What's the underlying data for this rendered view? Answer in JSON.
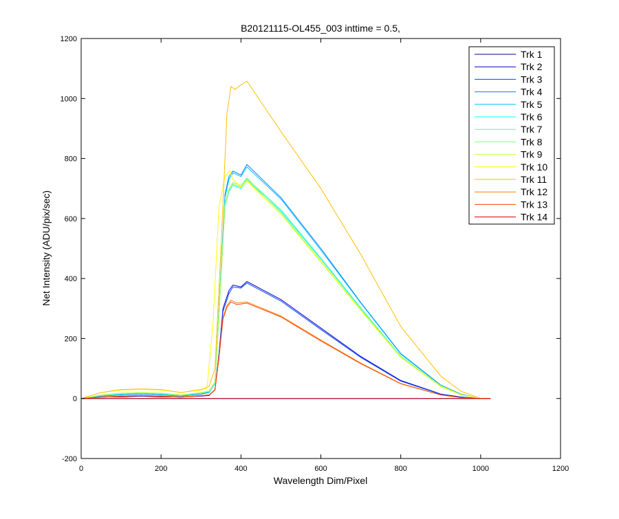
{
  "chart_data": {
    "type": "line",
    "title": "B20121115-OL455_003 inttime = 0.5,",
    "xlabel": "Wavelength Dim/Pixel",
    "ylabel": "Net Intensity (ADU/pix/sec)",
    "xlim": [
      0,
      1200
    ],
    "ylim": [
      -200,
      1200
    ],
    "xticks": [
      0,
      200,
      400,
      600,
      800,
      1000,
      1200
    ],
    "yticks": [
      -200,
      0,
      200,
      400,
      600,
      800,
      1000,
      1200
    ],
    "xtick_labels": [
      "0",
      "200",
      "400",
      "600",
      "800",
      "1000",
      "1200"
    ],
    "ytick_labels": [
      "-200",
      "0",
      "200",
      "400",
      "600",
      "800",
      "1000",
      "1200"
    ],
    "grid": false,
    "legend_position": "top-right",
    "series": [
      {
        "name": "Trk 1",
        "color": "#00008f",
        "x": [
          0,
          300,
          330,
          355,
          380,
          415,
          500,
          600,
          700,
          800,
          900,
          950,
          1000,
          1025
        ],
        "y": [
          0,
          0,
          0,
          0,
          0,
          0,
          0,
          0,
          0,
          0,
          0,
          0,
          0,
          0
        ]
      },
      {
        "name": "Trk 2",
        "color": "#0000cf",
        "x": [
          0,
          50,
          100,
          150,
          200,
          250,
          300,
          320,
          335,
          345,
          355,
          370,
          380,
          400,
          415,
          500,
          600,
          700,
          800,
          900,
          950,
          1000,
          1025
        ],
        "y": [
          0,
          5,
          5,
          8,
          5,
          5,
          8,
          10,
          30,
          150,
          300,
          360,
          378,
          372,
          390,
          330,
          235,
          140,
          60,
          15,
          5,
          0,
          0
        ]
      },
      {
        "name": "Trk 3",
        "color": "#0040ff",
        "x": [
          0,
          50,
          100,
          150,
          200,
          250,
          300,
          320,
          335,
          345,
          355,
          370,
          380,
          400,
          415,
          500,
          600,
          700,
          800,
          900,
          950,
          1000,
          1025
        ],
        "y": [
          0,
          5,
          8,
          10,
          8,
          5,
          10,
          12,
          30,
          150,
          290,
          350,
          372,
          368,
          385,
          325,
          230,
          137,
          58,
          14,
          4,
          0,
          0
        ]
      },
      {
        "name": "Trk 4",
        "color": "#0080ff",
        "x": [
          0,
          50,
          100,
          150,
          200,
          250,
          300,
          320,
          335,
          345,
          360,
          370,
          380,
          400,
          415,
          500,
          600,
          700,
          800,
          900,
          950,
          1000,
          1025
        ],
        "y": [
          0,
          8,
          12,
          15,
          12,
          8,
          15,
          20,
          50,
          300,
          680,
          740,
          758,
          745,
          780,
          670,
          500,
          320,
          150,
          45,
          15,
          0,
          0
        ]
      },
      {
        "name": "Trk 5",
        "color": "#00bfff",
        "x": [
          0,
          50,
          100,
          150,
          200,
          250,
          300,
          320,
          335,
          345,
          360,
          370,
          380,
          400,
          415,
          500,
          600,
          700,
          800,
          900,
          950,
          1000,
          1025
        ],
        "y": [
          0,
          10,
          15,
          18,
          15,
          10,
          18,
          22,
          50,
          300,
          670,
          730,
          752,
          740,
          772,
          665,
          495,
          318,
          148,
          44,
          14,
          0,
          0
        ]
      },
      {
        "name": "Trk 6",
        "color": "#00ffff",
        "x": [
          0,
          50,
          100,
          150,
          200,
          250,
          300,
          320,
          335,
          345,
          360,
          370,
          380,
          400,
          415,
          500,
          600,
          700,
          800,
          900,
          950,
          1000,
          1025
        ],
        "y": [
          0,
          10,
          15,
          18,
          15,
          10,
          18,
          22,
          50,
          280,
          640,
          690,
          712,
          700,
          728,
          625,
          465,
          300,
          140,
          42,
          13,
          0,
          0
        ]
      },
      {
        "name": "Trk 7",
        "color": "#40ffbf",
        "x": [
          0,
          50,
          100,
          150,
          200,
          250,
          300,
          320,
          335,
          345,
          360,
          370,
          380,
          400,
          415,
          500,
          600,
          700,
          800,
          900,
          950,
          1000,
          1025
        ],
        "y": [
          0,
          10,
          15,
          18,
          15,
          10,
          18,
          22,
          50,
          280,
          645,
          695,
          715,
          705,
          732,
          630,
          468,
          302,
          141,
          42,
          13,
          0,
          0
        ]
      },
      {
        "name": "Trk 8",
        "color": "#80ff80",
        "x": [
          0,
          50,
          100,
          150,
          200,
          250,
          300,
          320,
          335,
          345,
          360,
          370,
          380,
          400,
          415,
          500,
          600,
          700,
          800,
          900,
          950,
          1000,
          1025
        ],
        "y": [
          0,
          12,
          18,
          20,
          18,
          12,
          20,
          25,
          55,
          290,
          650,
          700,
          720,
          710,
          735,
          620,
          458,
          296,
          138,
          41,
          12,
          0,
          0
        ]
      },
      {
        "name": "Trk 9",
        "color": "#bfff40",
        "x": [
          0,
          50,
          100,
          150,
          200,
          250,
          300,
          320,
          335,
          345,
          360,
          370,
          380,
          400,
          415,
          500,
          600,
          700,
          800,
          900,
          950,
          1000,
          1025
        ],
        "y": [
          0,
          12,
          18,
          20,
          18,
          12,
          20,
          25,
          55,
          285,
          645,
          695,
          715,
          706,
          728,
          615,
          455,
          294,
          137,
          40,
          12,
          0,
          0
        ]
      },
      {
        "name": "Trk 10",
        "color": "#ffff00",
        "x": [
          0,
          50,
          100,
          150,
          200,
          250,
          300,
          315,
          330,
          345,
          360,
          372,
          380,
          400,
          415,
          500,
          600,
          700,
          800,
          900,
          950,
          1000,
          1025
        ],
        "y": [
          0,
          20,
          28,
          30,
          28,
          20,
          28,
          35,
          250,
          640,
          740,
          760,
          730,
          705,
          725,
          615,
          458,
          296,
          138,
          42,
          13,
          0,
          0
        ]
      },
      {
        "name": "Trk 11",
        "color": "#ffbf00",
        "x": [
          0,
          50,
          100,
          150,
          200,
          250,
          300,
          320,
          335,
          350,
          365,
          375,
          385,
          400,
          415,
          500,
          600,
          700,
          800,
          900,
          950,
          1000,
          1025
        ],
        "y": [
          0,
          20,
          30,
          32,
          30,
          20,
          30,
          40,
          100,
          500,
          950,
          1040,
          1030,
          1045,
          1058,
          890,
          700,
          480,
          240,
          75,
          25,
          0,
          0
        ]
      },
      {
        "name": "Trk 12",
        "color": "#ff8000",
        "x": [
          0,
          50,
          100,
          150,
          200,
          250,
          300,
          320,
          335,
          345,
          355,
          365,
          375,
          390,
          415,
          500,
          600,
          700,
          800,
          900,
          950,
          1000,
          1025
        ],
        "y": [
          0,
          5,
          8,
          10,
          8,
          5,
          10,
          12,
          30,
          140,
          270,
          310,
          328,
          318,
          322,
          275,
          195,
          118,
          50,
          12,
          3,
          0,
          0
        ]
      },
      {
        "name": "Trk 13",
        "color": "#ff4000",
        "x": [
          0,
          50,
          100,
          150,
          200,
          250,
          300,
          320,
          335,
          345,
          355,
          365,
          375,
          390,
          415,
          500,
          600,
          700,
          800,
          900,
          950,
          1000,
          1025
        ],
        "y": [
          0,
          4,
          7,
          9,
          7,
          4,
          9,
          11,
          28,
          135,
          265,
          305,
          322,
          313,
          318,
          272,
          192,
          116,
          49,
          12,
          3,
          0,
          0
        ]
      },
      {
        "name": "Trk 14",
        "color": "#cf0000",
        "x": [
          0,
          300,
          330,
          355,
          380,
          415,
          500,
          600,
          700,
          800,
          900,
          950,
          1000,
          1025
        ],
        "y": [
          0,
          0,
          0,
          0,
          0,
          0,
          0,
          0,
          0,
          0,
          0,
          0,
          0,
          0
        ]
      }
    ]
  }
}
